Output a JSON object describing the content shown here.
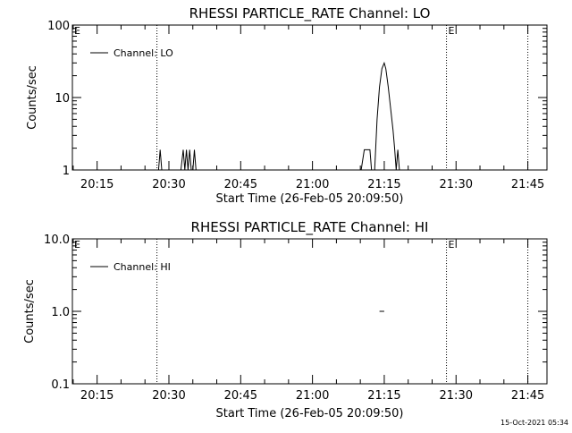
{
  "footer": {
    "timestamp": "15-Oct-2021 05:34"
  },
  "chart_data": [
    {
      "type": "line",
      "title": "RHESSI PARTICLE_RATE Channel: LO",
      "xlabel": "Start Time (26-Feb-05 20:09:50)",
      "ylabel": "Counts/sec",
      "yscale": "log",
      "ylim": [
        1,
        100
      ],
      "ytick_labels": [
        "1",
        "10",
        "100"
      ],
      "xtick_labels": [
        "20:15",
        "20:30",
        "20:45",
        "21:00",
        "21:15",
        "21:30",
        "21:45"
      ],
      "grid": false,
      "legend": {
        "placement": "top-left",
        "entries": [
          "Channel: LO"
        ]
      },
      "event_markers": [
        {
          "time": "20:27:30",
          "label": ""
        },
        {
          "time": "21:28:00",
          "label": "E"
        },
        {
          "time": "21:45:00",
          "label": ""
        }
      ],
      "edge_marker_label": "E",
      "series": [
        {
          "name": "Channel: LO",
          "x": [
            "20:09:50",
            "20:27:50",
            "20:28:10",
            "20:28:30",
            "20:32:30",
            "20:33:00",
            "20:33:20",
            "20:33:40",
            "20:34:00",
            "20:34:20",
            "20:34:40",
            "20:35:00",
            "20:35:20",
            "20:35:40",
            "20:36:00",
            "20:36:20",
            "20:36:40",
            "20:37:00",
            "21:10:10",
            "21:10:50",
            "21:11:10",
            "21:12:00",
            "21:12:20",
            "21:13:00",
            "21:13:30",
            "21:14:00",
            "21:14:30",
            "21:15:00",
            "21:15:20",
            "21:15:50",
            "21:16:20",
            "21:16:50",
            "21:17:10",
            "21:17:30",
            "21:17:50",
            "21:18:10",
            "21:18:30",
            "21:18:50"
          ],
          "y": [
            1,
            1,
            1.9,
            1,
            1,
            1.9,
            1,
            1.9,
            1,
            1.9,
            1,
            1,
            1.9,
            1,
            1,
            1,
            1,
            1,
            1,
            1.9,
            1.9,
            1.9,
            1,
            1,
            5,
            14,
            25,
            30,
            25,
            14,
            7,
            3.5,
            2,
            1,
            1.9,
            1,
            1,
            1
          ]
        }
      ]
    },
    {
      "type": "line",
      "title": "RHESSI PARTICLE_RATE Channel: HI",
      "xlabel": "Start Time (26-Feb-05 20:09:50)",
      "ylabel": "Counts/sec",
      "yscale": "log",
      "ylim": [
        0.1,
        10
      ],
      "ytick_labels": [
        "0.1",
        "1.0",
        "10.0"
      ],
      "xtick_labels": [
        "20:15",
        "20:30",
        "20:45",
        "21:00",
        "21:15",
        "21:30",
        "21:45"
      ],
      "grid": false,
      "legend": {
        "placement": "top-left",
        "entries": [
          "Channel: HI"
        ]
      },
      "event_markers": [
        {
          "time": "20:27:30",
          "label": ""
        },
        {
          "time": "21:28:00",
          "label": "E"
        },
        {
          "time": "21:45:00",
          "label": ""
        }
      ],
      "edge_marker_label": "E",
      "series": [
        {
          "name": "Channel: HI",
          "x": [
            "21:14:00",
            "21:15:00"
          ],
          "y": [
            1,
            1
          ]
        }
      ]
    }
  ]
}
